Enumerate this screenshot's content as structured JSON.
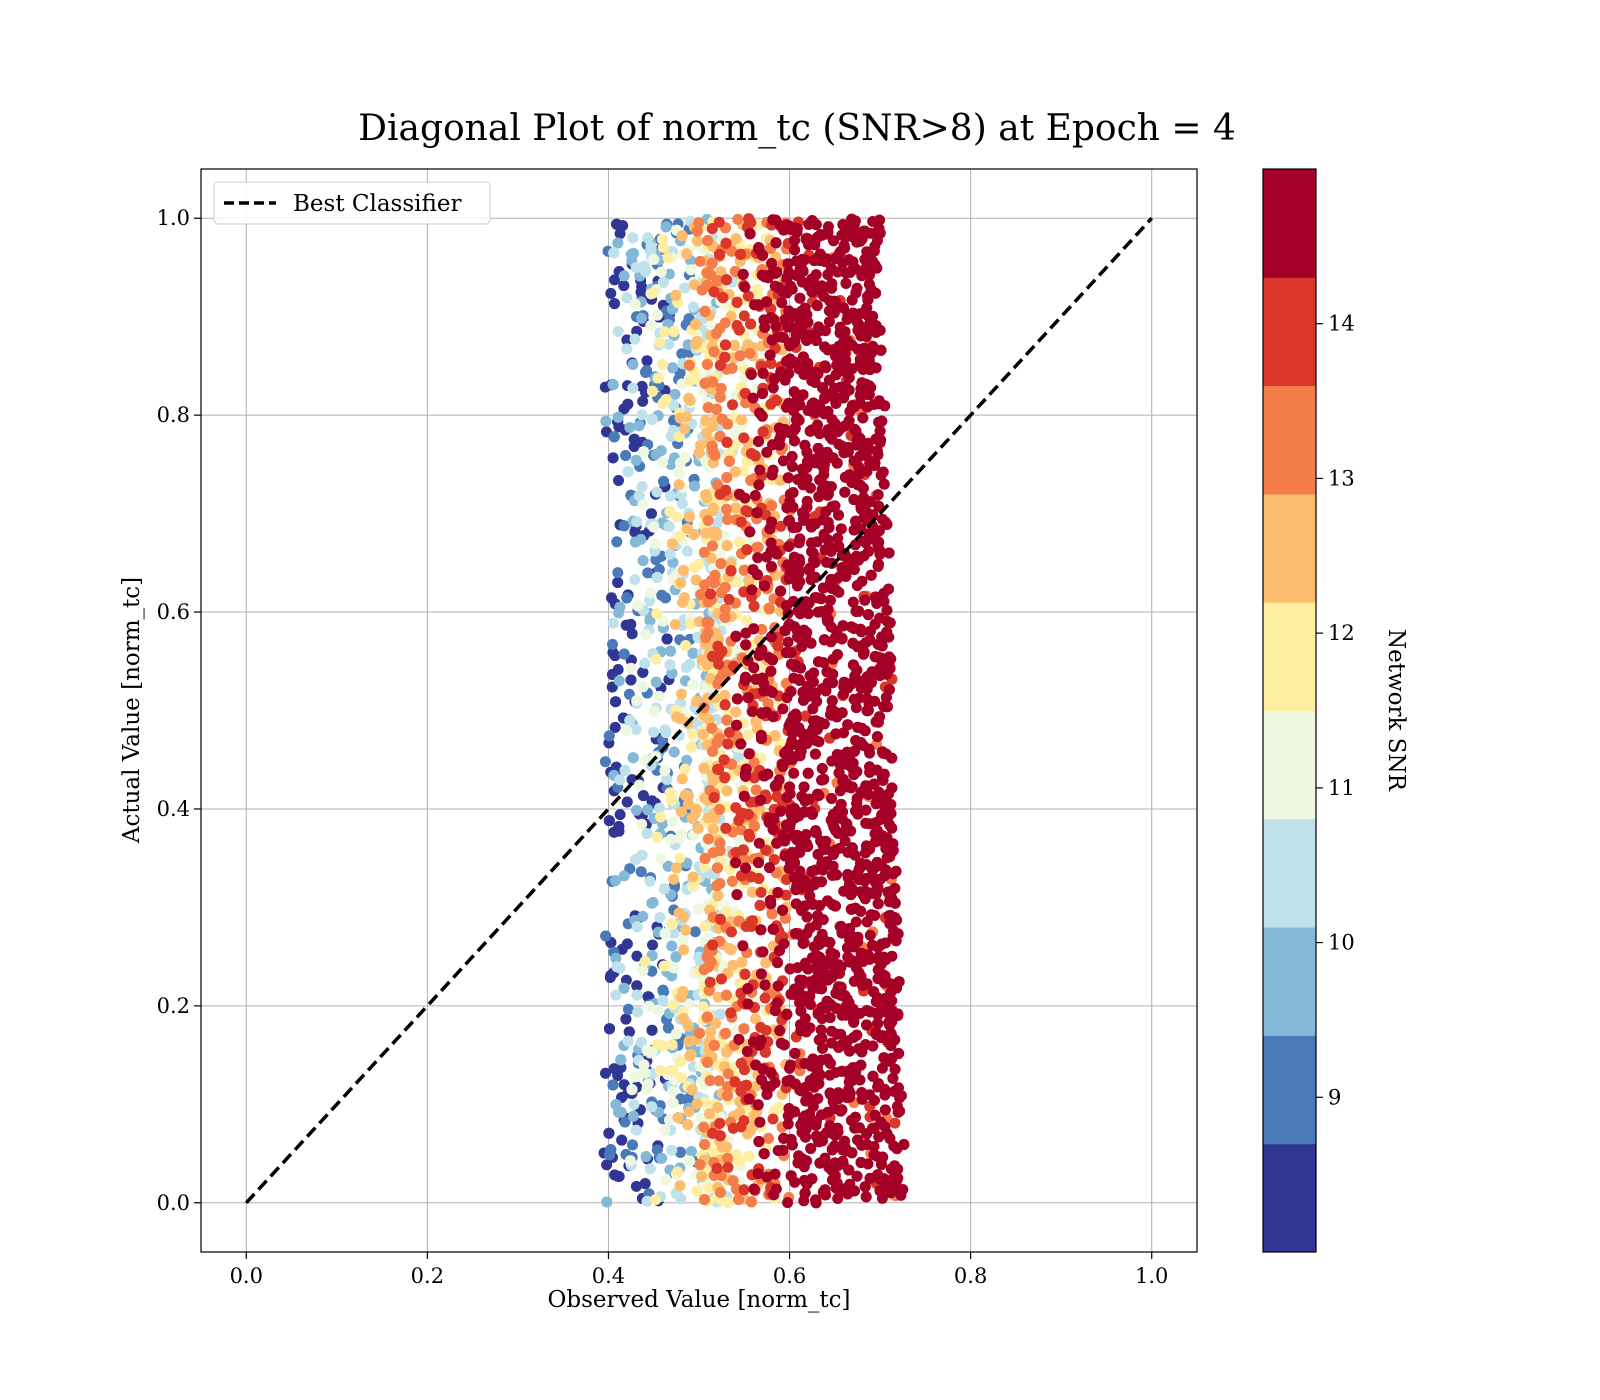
{
  "chart_data": {
    "type": "scatter",
    "title": "Diagonal Plot of norm_tc (SNR>8) at Epoch = 4",
    "xlabel": "Observed Value [norm_tc]",
    "ylabel": "Actual Value [norm_tc]",
    "xlim": [
      -0.05,
      1.05
    ],
    "ylim": [
      -0.05,
      1.05
    ],
    "xticks": [
      "0.0",
      "0.2",
      "0.4",
      "0.6",
      "0.8",
      "1.0"
    ],
    "yticks": [
      "0.0",
      "0.2",
      "0.4",
      "0.6",
      "0.8",
      "1.0"
    ],
    "grid": true,
    "legend": {
      "placement": "upper-left",
      "entries": [
        {
          "label": "Best Classifier",
          "style": "dashed",
          "color": "#000000"
        }
      ]
    },
    "series": [
      {
        "name": "Best Classifier",
        "kind": "line",
        "style": "dashed",
        "x": [
          0.0,
          1.0
        ],
        "y": [
          0.0,
          1.0
        ]
      }
    ],
    "scatter_description": {
      "y_range": [
        0.0,
        1.0
      ],
      "observed_range_approx": [
        0.39,
        0.74
      ],
      "observed_center_approx": 0.62,
      "color_encodes": "Network SNR"
    },
    "colorbar": {
      "label": "Network SNR",
      "min": 8,
      "max": 15,
      "ticks": [
        "9",
        "10",
        "11",
        "12",
        "13",
        "14"
      ],
      "tick_values": [
        9,
        10,
        11,
        12,
        13,
        14
      ],
      "bins": [
        {
          "lo": 8.0,
          "hi": 8.7,
          "color": "#313695"
        },
        {
          "lo": 8.7,
          "hi": 9.4,
          "color": "#4a7ab7"
        },
        {
          "lo": 9.4,
          "hi": 10.1,
          "color": "#84b8d7"
        },
        {
          "lo": 10.1,
          "hi": 10.8,
          "color": "#bfe1eb"
        },
        {
          "lo": 10.8,
          "hi": 11.5,
          "color": "#eef7df"
        },
        {
          "lo": 11.5,
          "hi": 12.2,
          "color": "#feeea2"
        },
        {
          "lo": 12.2,
          "hi": 12.9,
          "color": "#fcbe6e"
        },
        {
          "lo": 12.9,
          "hi": 13.6,
          "color": "#f47d4a"
        },
        {
          "lo": 13.6,
          "hi": 14.3,
          "color": "#da372a"
        },
        {
          "lo": 14.3,
          "hi": 15.0,
          "color": "#a50026"
        }
      ]
    }
  }
}
